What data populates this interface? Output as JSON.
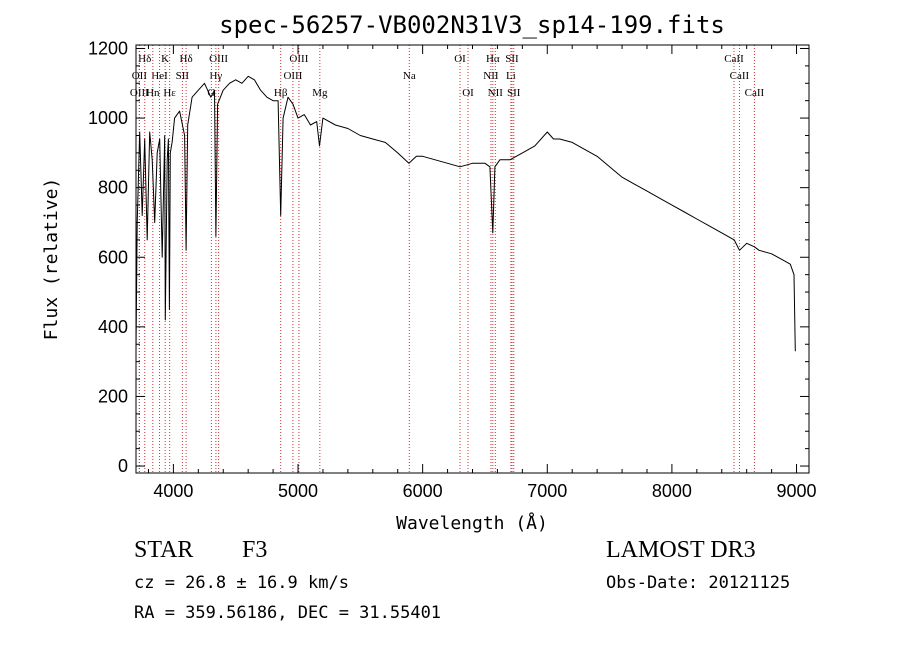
{
  "chart_data": {
    "type": "line",
    "title": "spec-56257-VB002N31V3_sp14-199.fits",
    "xlabel": "Wavelength (Å)",
    "ylabel": "Flux (relative)",
    "xlim": [
      3700,
      9100
    ],
    "ylim": [
      -20,
      1210
    ],
    "xticks": [
      4000,
      5000,
      6000,
      7000,
      8000,
      9000
    ],
    "yticks": [
      0,
      200,
      400,
      600,
      800,
      1000,
      1200
    ],
    "line_color": "#000000",
    "marker_color": "#cc3333",
    "series": [
      {
        "name": "spectrum",
        "x": [
          3700,
          3710,
          3730,
          3750,
          3770,
          3790,
          3810,
          3830,
          3850,
          3870,
          3890,
          3910,
          3930,
          3935,
          3950,
          3960,
          3968,
          3975,
          3990,
          4010,
          4050,
          4090,
          4102,
          4115,
          4150,
          4200,
          4250,
          4300,
          4330,
          4341,
          4355,
          4400,
          4450,
          4500,
          4550,
          4600,
          4650,
          4700,
          4750,
          4800,
          4840,
          4861,
          4880,
          4920,
          4960,
          5000,
          5050,
          5100,
          5150,
          5172,
          5200,
          5300,
          5400,
          5500,
          5600,
          5700,
          5800,
          5890,
          5950,
          6000,
          6100,
          6200,
          6300,
          6400,
          6500,
          6540,
          6563,
          6580,
          6620,
          6700,
          6800,
          6900,
          7000,
          7050,
          7100,
          7200,
          7300,
          7400,
          7500,
          7600,
          7700,
          7800,
          7900,
          8000,
          8100,
          8200,
          8300,
          8400,
          8500,
          8542,
          8600,
          8662,
          8700,
          8800,
          8900,
          8950,
          8980,
          8990
        ],
        "y": [
          330,
          700,
          960,
          720,
          940,
          650,
          960,
          880,
          700,
          900,
          940,
          600,
          950,
          420,
          880,
          940,
          450,
          900,
          930,
          1000,
          1020,
          950,
          620,
          980,
          1060,
          1080,
          1100,
          1060,
          1080,
          660,
          1040,
          1080,
          1100,
          1110,
          1100,
          1120,
          1110,
          1080,
          1060,
          1050,
          1050,
          720,
          1000,
          1060,
          1040,
          1000,
          1010,
          980,
          990,
          920,
          1000,
          980,
          970,
          950,
          940,
          930,
          900,
          870,
          890,
          890,
          880,
          870,
          860,
          870,
          870,
          860,
          670,
          860,
          880,
          880,
          900,
          920,
          960,
          940,
          940,
          930,
          910,
          890,
          860,
          830,
          810,
          790,
          770,
          750,
          730,
          710,
          690,
          670,
          650,
          620,
          640,
          630,
          620,
          610,
          590,
          580,
          550,
          330
        ]
      }
    ],
    "lines": [
      {
        "name": "Hδ",
        "wl": 3770,
        "row": 0
      },
      {
        "name": "OII",
        "wl": 3727,
        "row": 1
      },
      {
        "name": "OIII",
        "wl": 3727,
        "row": 2
      },
      {
        "name": "K",
        "wl": 3934,
        "row": 0
      },
      {
        "name": "HeI",
        "wl": 3889,
        "row": 1
      },
      {
        "name": "Hn",
        "wl": 3835,
        "row": 2
      },
      {
        "name": "SII",
        "wl": 4072,
        "row": 1
      },
      {
        "name": "Hε",
        "wl": 3970,
        "row": 2
      },
      {
        "name": "Hδ",
        "wl": 4102,
        "row": 0
      },
      {
        "name": "OIII",
        "wl": 4363,
        "row": 0
      },
      {
        "name": "Hγ",
        "wl": 4341,
        "row": 1
      },
      {
        "name": "G",
        "wl": 4305,
        "row": 2
      },
      {
        "name": "Hβ",
        "wl": 4861,
        "row": 2
      },
      {
        "name": "OIII",
        "wl": 5007,
        "row": 0
      },
      {
        "name": "OIII",
        "wl": 4959,
        "row": 1
      },
      {
        "name": "Mg",
        "wl": 5175,
        "row": 2
      },
      {
        "name": "Na",
        "wl": 5893,
        "row": 1
      },
      {
        "name": "OI",
        "wl": 6300,
        "row": 0
      },
      {
        "name": "OI",
        "wl": 6364,
        "row": 2
      },
      {
        "name": "Hα",
        "wl": 6563,
        "row": 0
      },
      {
        "name": "NII",
        "wl": 6548,
        "row": 1
      },
      {
        "name": "NII",
        "wl": 6583,
        "row": 2
      },
      {
        "name": "SII",
        "wl": 6717,
        "row": 0
      },
      {
        "name": "Li",
        "wl": 6708,
        "row": 1
      },
      {
        "name": "SII",
        "wl": 6731,
        "row": 2
      },
      {
        "name": "CaII",
        "wl": 8498,
        "row": 0
      },
      {
        "name": "CaII",
        "wl": 8542,
        "row": 1
      },
      {
        "name": "CaII",
        "wl": 8662,
        "row": 2
      }
    ]
  },
  "info": {
    "object_type": "STAR",
    "object_class": "F3",
    "survey": "LAMOST DR3",
    "cz_line": "cz = 26.8 ± 16.9 km/s",
    "obs_date": "Obs-Date: 20121125",
    "radec_line": "RA = 359.56186, DEC =  31.55401"
  }
}
